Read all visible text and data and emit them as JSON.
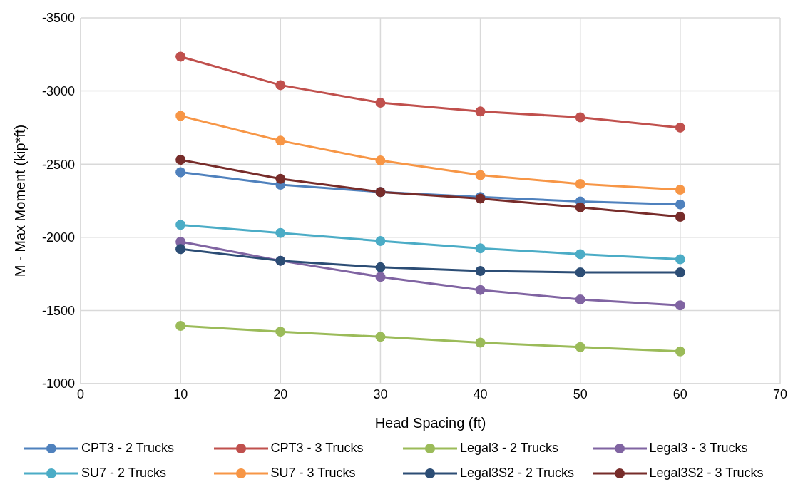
{
  "chart_data": {
    "type": "line",
    "xlabel": "Head Spacing (ft)",
    "ylabel": "M - Max Moment (kip*ft)",
    "x": [
      10,
      20,
      30,
      40,
      50,
      60
    ],
    "xlim": [
      0,
      70
    ],
    "xticks": [
      0,
      10,
      20,
      30,
      40,
      50,
      60,
      70
    ],
    "ylim": [
      -1000,
      -3500
    ],
    "yticks": [
      -1000,
      -1500,
      -2000,
      -2500,
      -3000,
      -3500
    ],
    "grid": true,
    "legend": "bottom",
    "marker": "circle",
    "line_style": "solid",
    "series": [
      {
        "name": "CPT3 - 2 Trucks",
        "color": "#4f81bd",
        "values": [
          -2445,
          -2360,
          -2310,
          -2275,
          -2245,
          -2225
        ]
      },
      {
        "name": "CPT3 - 3 Trucks",
        "color": "#c0504d",
        "values": [
          -3235,
          -3040,
          -2920,
          -2860,
          -2820,
          -2750
        ]
      },
      {
        "name": "Legal3 - 2 Trucks",
        "color": "#9bbb59",
        "values": [
          -1395,
          -1355,
          -1320,
          -1280,
          -1250,
          -1220
        ]
      },
      {
        "name": "Legal3 - 3 Trucks",
        "color": "#8064a2",
        "values": [
          -1970,
          -1840,
          -1730,
          -1640,
          -1575,
          -1535
        ]
      },
      {
        "name": "SU7 - 2 Trucks",
        "color": "#4bacc6",
        "values": [
          -2085,
          -2030,
          -1975,
          -1925,
          -1885,
          -1850
        ]
      },
      {
        "name": "SU7 - 3 Trucks",
        "color": "#f79646",
        "values": [
          -2830,
          -2660,
          -2525,
          -2425,
          -2365,
          -2325
        ]
      },
      {
        "name": "Legal3S2 - 2 Trucks",
        "color": "#2c4d75",
        "values": [
          -1920,
          -1840,
          -1795,
          -1770,
          -1760,
          -1760
        ]
      },
      {
        "name": "Legal3S2 - 3 Trucks",
        "color": "#772c2a",
        "values": [
          -2530,
          -2400,
          -2310,
          -2265,
          -2205,
          -2140
        ]
      }
    ]
  }
}
